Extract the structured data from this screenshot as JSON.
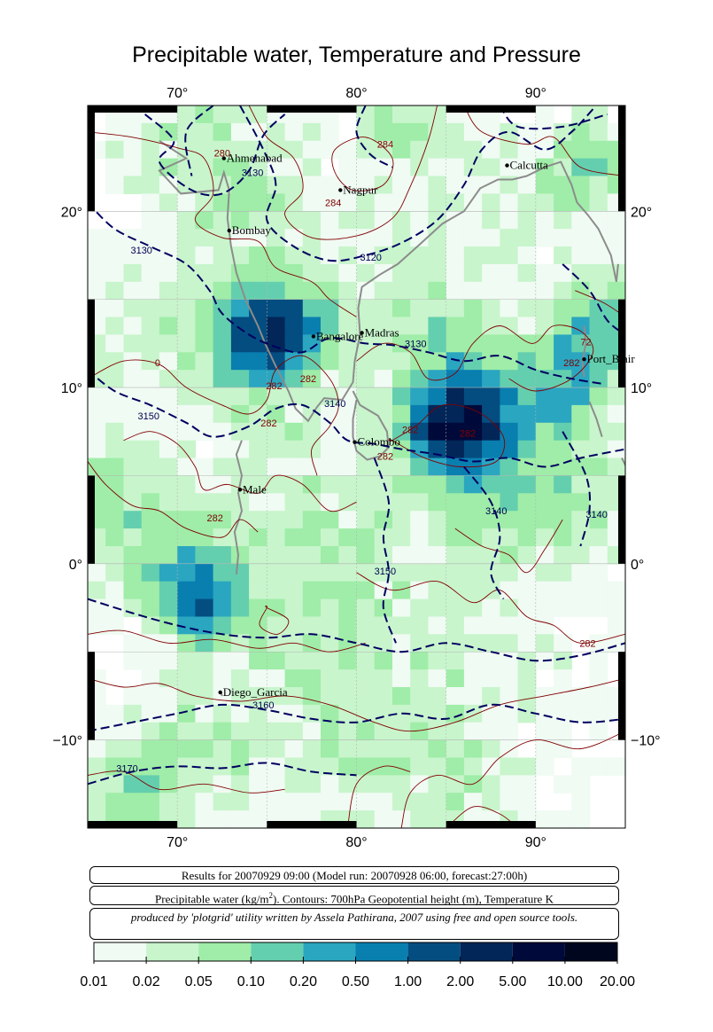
{
  "title": "Precipitable water, Temperature and Pressure",
  "map": {
    "lon_range": [
      65,
      95
    ],
    "lat_range": [
      -15,
      26
    ],
    "lon_ticks": [
      {
        "value": 70,
        "label": "70°"
      },
      {
        "value": 80,
        "label": "80°"
      },
      {
        "value": 90,
        "label": "90°"
      }
    ],
    "lat_ticks": [
      {
        "value": 20,
        "label": "20°"
      },
      {
        "value": 10,
        "label": "10°"
      },
      {
        "value": 0,
        "label": "0°"
      },
      {
        "value": -10,
        "label": "−10°"
      }
    ],
    "gridlines": true
  },
  "cities": [
    {
      "name": "Ahmenabad",
      "lon": 72.6,
      "lat": 23.0
    },
    {
      "name": "Nagpur",
      "lon": 79.1,
      "lat": 21.2
    },
    {
      "name": "Calcutta",
      "lon": 88.4,
      "lat": 22.6
    },
    {
      "name": "Bombay",
      "lon": 72.9,
      "lat": 18.9
    },
    {
      "name": "Bangalore",
      "lon": 77.6,
      "lat": 12.9
    },
    {
      "name": "Madras",
      "lon": 80.3,
      "lat": 13.1
    },
    {
      "name": "Port_Blair",
      "lon": 92.7,
      "lat": 11.6
    },
    {
      "name": "Colombo",
      "lon": 79.9,
      "lat": 6.9
    },
    {
      "name": "Male",
      "lon": 73.5,
      "lat": 4.2
    },
    {
      "name": "Diego_Garcia",
      "lon": 72.4,
      "lat": -7.3
    }
  ],
  "contour_labels": {
    "temperature": [
      {
        "text": "280",
        "lon": 72.5,
        "lat": 23.1
      },
      {
        "text": "284",
        "lon": 81.6,
        "lat": 23.6
      },
      {
        "text": "284",
        "lon": 78.7,
        "lat": 20.3
      },
      {
        "text": "282",
        "lon": 75.4,
        "lat": 9.9
      },
      {
        "text": "282",
        "lon": 77.3,
        "lat": 10.3
      },
      {
        "text": "282",
        "lon": 75.1,
        "lat": 7.8
      },
      {
        "text": "282",
        "lon": 83.0,
        "lat": 7.4
      },
      {
        "text": "282",
        "lon": 81.6,
        "lat": 5.9
      },
      {
        "text": "282",
        "lon": 86.2,
        "lat": 7.2
      },
      {
        "text": "282",
        "lon": 72.1,
        "lat": 2.4
      },
      {
        "text": "282",
        "lon": 92.0,
        "lat": 11.2
      },
      {
        "text": "282",
        "lon": 92.9,
        "lat": -4.7
      },
      {
        "text": "72",
        "lon": 92.8,
        "lat": 12.4
      },
      {
        "text": "0",
        "lon": 68.9,
        "lat": 11.2
      }
    ],
    "height": [
      {
        "text": "3130",
        "lon": 74.2,
        "lat": 22.0
      },
      {
        "text": "3130",
        "lon": 68.0,
        "lat": 17.6
      },
      {
        "text": "3120",
        "lon": 80.8,
        "lat": 17.2
      },
      {
        "text": "3130",
        "lon": 83.3,
        "lat": 12.3
      },
      {
        "text": "3140",
        "lon": 78.8,
        "lat": 8.9
      },
      {
        "text": "3150",
        "lon": 68.4,
        "lat": 8.2
      },
      {
        "text": "3150",
        "lon": 81.6,
        "lat": -0.6
      },
      {
        "text": "3140",
        "lon": 87.8,
        "lat": 2.8
      },
      {
        "text": "3140",
        "lon": 93.4,
        "lat": 2.6
      },
      {
        "text": "3160",
        "lon": 74.8,
        "lat": -8.2
      },
      {
        "text": "3170",
        "lon": 67.2,
        "lat": -11.8
      }
    ]
  },
  "info": {
    "results": "Results for 20070929 09:00 (Model run: 20070928 06:00, forecast:27:00h)",
    "legend_prefix": "Precipitable water (kg/m",
    "legend_sup": "2",
    "legend_suffix": ").  Contours: 700hPa Geopotential height (m), Temperature K",
    "credit": "produced by 'plotgrid' utility written by Assela Pathirana, 2007 using free and open source tools."
  },
  "colorbar": {
    "labels": [
      "0.01",
      "0.02",
      "0.05",
      "0.10",
      "0.20",
      "0.50",
      "1.00",
      "2.00",
      "5.00",
      "10.00",
      "20.00"
    ],
    "colors": [
      "#f0fbf3",
      "#c8f5cc",
      "#9feda8",
      "#64cfae",
      "#2aa6c0",
      "#097fb0",
      "#044d80",
      "#022658",
      "#000a3a",
      "#00061e"
    ]
  },
  "colors": {
    "temperature_contour": "#800000",
    "height_contour": "#000060",
    "coastline": "#8c8c8c",
    "gridline": "#b4b4b4"
  }
}
